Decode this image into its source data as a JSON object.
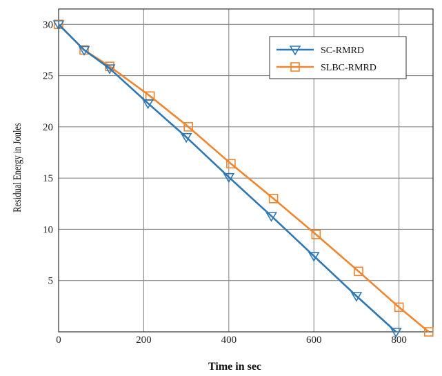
{
  "chart_data": {
    "type": "line",
    "title": "",
    "xlabel": "Time in sec",
    "ylabel": "Residual Energy in Joules",
    "xlim": [
      0,
      880
    ],
    "ylim": [
      0,
      31.5
    ],
    "xticks": [
      0,
      200,
      400,
      600,
      800
    ],
    "yticks": [
      5,
      10,
      15,
      20,
      25,
      30
    ],
    "grid": true,
    "legend_position": "top-right",
    "series": [
      {
        "name": "SC-RMRD",
        "color": "#2e77b5",
        "marker": "triangle-down",
        "x": [
          0,
          60,
          120,
          210,
          300,
          400,
          500,
          600,
          700,
          793
        ],
        "y": [
          30,
          27.5,
          25.7,
          22.3,
          19.0,
          15.1,
          11.3,
          7.4,
          3.5,
          0
        ]
      },
      {
        "name": "SLBC-RMRD",
        "color": "#f0852d",
        "marker": "square",
        "x": [
          0,
          60,
          120,
          215,
          305,
          405,
          505,
          605,
          705,
          800,
          870
        ],
        "y": [
          30,
          27.5,
          25.9,
          23.0,
          20.0,
          16.4,
          13.0,
          9.5,
          5.9,
          2.4,
          0
        ]
      }
    ]
  }
}
